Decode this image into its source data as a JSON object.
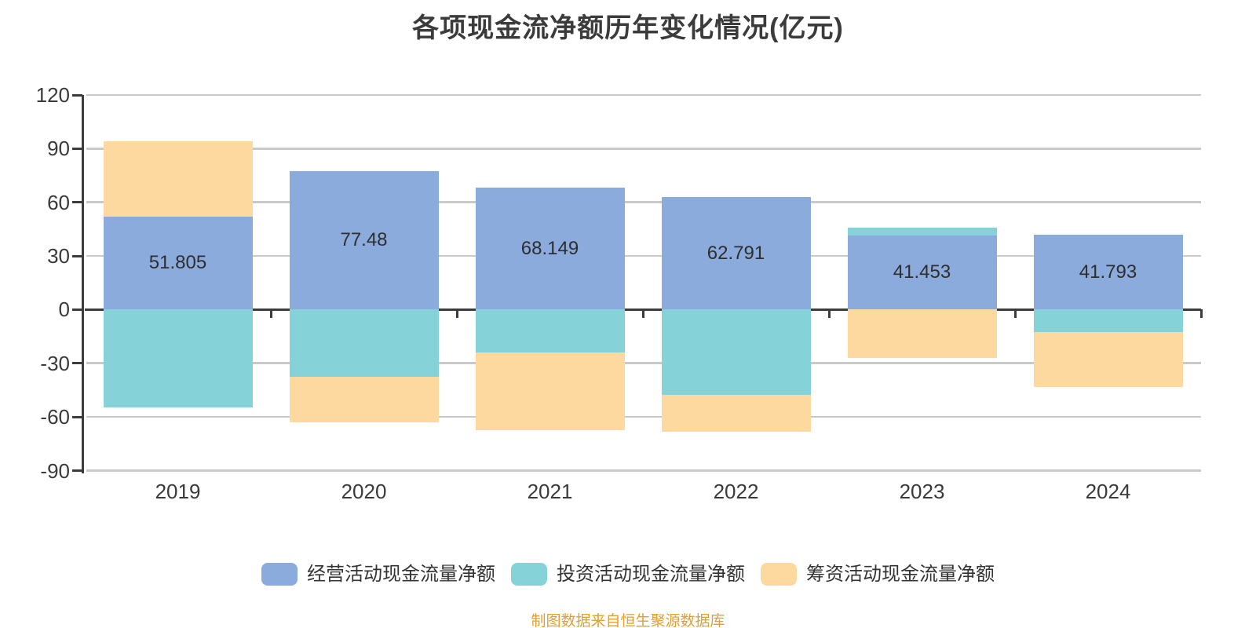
{
  "title": "各项现金流净额历年变化情况(亿元)",
  "footnote": "制图数据来自恒生聚源数据库",
  "colors": {
    "background": "#ffffff",
    "grid": "#c9c9c9",
    "axis": "#3c3c3c",
    "title_text": "#3b3b3b",
    "tick_text": "#3a3a3a",
    "bar_label_text": "#2e2e2e",
    "footnote_text": "#e0a032",
    "operating": "#8babdc",
    "investing": "#85d3d8",
    "financing": "#fdd9a0"
  },
  "chart_data": {
    "type": "bar",
    "stacked": true,
    "title": "各项现金流净额历年变化情况(亿元)",
    "categories": [
      "2019",
      "2020",
      "2021",
      "2022",
      "2023",
      "2024"
    ],
    "series": [
      {
        "name": "经营活动现金流量净额",
        "color": "#8babdc",
        "values": [
          51.805,
          77.48,
          68.149,
          62.791,
          41.453,
          41.793
        ],
        "labels": [
          "51.805",
          "77.48",
          "68.149",
          "62.791",
          "41.453",
          "41.793"
        ]
      },
      {
        "name": "投资活动现金流量净额",
        "color": "#85d3d8",
        "values": [
          -54.7,
          -37.7,
          -24.1,
          -47.7,
          4.5,
          -12.5
        ]
      },
      {
        "name": "筹资活动现金流量净额",
        "color": "#fdd9a0",
        "values": [
          42.5,
          -25.5,
          -43.2,
          -20.6,
          -26.9,
          -30.9
        ]
      }
    ],
    "value_labels_series": "经营活动现金流量净额",
    "xlabel": "",
    "ylabel": "",
    "ylim": [
      -90,
      120
    ],
    "yticks": [
      120,
      90,
      60,
      30,
      0,
      -30,
      -60,
      -90
    ],
    "grid": true,
    "legend_position": "bottom"
  }
}
